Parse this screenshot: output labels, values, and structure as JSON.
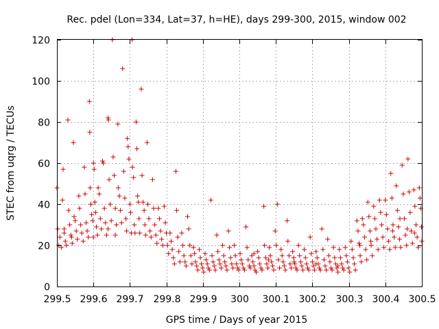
{
  "chart_data": {
    "type": "scatter",
    "title": "Rec. pdel (Lon=334, Lat=37, h=HE), days 299-300, 2015, window 002",
    "xlabel": "GPS time / Days of year 2015",
    "ylabel": "STEC from uqrg / TECUs",
    "xlim": [
      299.5,
      300.5
    ],
    "ylim": [
      0,
      120
    ],
    "xticks": [
      "299.5",
      "299.6",
      "299.7",
      "299.8",
      "299.9",
      "300",
      "300.1",
      "300.2",
      "300.3",
      "300.4",
      "300.5"
    ],
    "yticks": [
      "0",
      "20",
      "40",
      "60",
      "80",
      "100",
      "120"
    ],
    "grid": true,
    "marker": "+",
    "color": "#cc0000",
    "points": [
      [
        299.5,
        48
      ],
      [
        299.502,
        28
      ],
      [
        299.505,
        20
      ],
      [
        299.508,
        24
      ],
      [
        299.512,
        19
      ],
      [
        299.515,
        42
      ],
      [
        299.517,
        57
      ],
      [
        299.52,
        26
      ],
      [
        299.523,
        22
      ],
      [
        299.526,
        20
      ],
      [
        299.53,
        81
      ],
      [
        299.532,
        37
      ],
      [
        299.535,
        30
      ],
      [
        299.538,
        25
      ],
      [
        299.542,
        21
      ],
      [
        299.545,
        70
      ],
      [
        299.547,
        34
      ],
      [
        299.55,
        32
      ],
      [
        299.553,
        27
      ],
      [
        299.556,
        23
      ],
      [
        299.56,
        44
      ],
      [
        299.562,
        38
      ],
      [
        299.565,
        30
      ],
      [
        299.568,
        26
      ],
      [
        299.572,
        22
      ],
      [
        299.575,
        58
      ],
      [
        299.577,
        45
      ],
      [
        299.58,
        31
      ],
      [
        299.583,
        27
      ],
      [
        299.586,
        24
      ],
      [
        299.589,
        90
      ],
      [
        299.59,
        75
      ],
      [
        299.591,
        48
      ],
      [
        299.593,
        40
      ],
      [
        299.595,
        35
      ],
      [
        299.598,
        32
      ],
      [
        299.6,
        60
      ],
      [
        299.602,
        57
      ],
      [
        299.604,
        41
      ],
      [
        299.606,
        36
      ],
      [
        299.608,
        29
      ],
      [
        299.611,
        25
      ],
      [
        299.613,
        48
      ],
      [
        299.616,
        45
      ],
      [
        299.619,
        33
      ],
      [
        299.622,
        28
      ],
      [
        299.625,
        61
      ],
      [
        299.627,
        60
      ],
      [
        299.63,
        38
      ],
      [
        299.633,
        31
      ],
      [
        299.636,
        25
      ],
      [
        299.64,
        82
      ],
      [
        299.641,
        81
      ],
      [
        299.643,
        52
      ],
      [
        299.646,
        40
      ],
      [
        299.649,
        32
      ],
      [
        299.652,
        120
      ],
      [
        299.654,
        63
      ],
      [
        299.657,
        54
      ],
      [
        299.66,
        38
      ],
      [
        299.663,
        30
      ],
      [
        299.667,
        79
      ],
      [
        299.668,
        48
      ],
      [
        299.671,
        44
      ],
      [
        299.674,
        37
      ],
      [
        299.677,
        31
      ],
      [
        299.68,
        106
      ],
      [
        299.683,
        56
      ],
      [
        299.686,
        43
      ],
      [
        299.689,
        33
      ],
      [
        299.691,
        27
      ],
      [
        299.693,
        72
      ],
      [
        299.695,
        68
      ],
      [
        299.697,
        62
      ],
      [
        299.7,
        40
      ],
      [
        299.702,
        36
      ],
      [
        299.704,
        26
      ],
      [
        299.706,
        120
      ],
      [
        299.707,
        58
      ],
      [
        299.71,
        53
      ],
      [
        299.712,
        30
      ],
      [
        299.714,
        26
      ],
      [
        299.717,
        80
      ],
      [
        299.719,
        67
      ],
      [
        299.721,
        44
      ],
      [
        299.723,
        41
      ],
      [
        299.725,
        33
      ],
      [
        299.727,
        26
      ],
      [
        299.731,
        96
      ],
      [
        299.733,
        54
      ],
      [
        299.736,
        41
      ],
      [
        299.739,
        37
      ],
      [
        299.741,
        30
      ],
      [
        299.743,
        25
      ],
      [
        299.747,
        70
      ],
      [
        299.749,
        40
      ],
      [
        299.752,
        33
      ],
      [
        299.755,
        27
      ],
      [
        299.758,
        24
      ],
      [
        299.762,
        52
      ],
      [
        299.765,
        38
      ],
      [
        299.768,
        30
      ],
      [
        299.771,
        25
      ],
      [
        299.774,
        21
      ],
      [
        299.778,
        38
      ],
      [
        299.781,
        33
      ],
      [
        299.784,
        27
      ],
      [
        299.787,
        23
      ],
      [
        299.79,
        20
      ],
      [
        299.794,
        39
      ],
      [
        299.797,
        31
      ],
      [
        299.8,
        26
      ],
      [
        299.803,
        20
      ],
      [
        299.806,
        16
      ],
      [
        299.81,
        26
      ],
      [
        299.813,
        22
      ],
      [
        299.816,
        18
      ],
      [
        299.819,
        14
      ],
      [
        299.822,
        11
      ],
      [
        299.826,
        56
      ],
      [
        299.828,
        37
      ],
      [
        299.831,
        24
      ],
      [
        299.834,
        17
      ],
      [
        299.837,
        12
      ],
      [
        299.842,
        26
      ],
      [
        299.845,
        20
      ],
      [
        299.848,
        15
      ],
      [
        299.851,
        12
      ],
      [
        299.854,
        10
      ],
      [
        299.858,
        34
      ],
      [
        299.861,
        28
      ],
      [
        299.864,
        20
      ],
      [
        299.867,
        15
      ],
      [
        299.87,
        11
      ],
      [
        299.874,
        19
      ],
      [
        299.877,
        16
      ],
      [
        299.88,
        12
      ],
      [
        299.883,
        10
      ],
      [
        299.886,
        8
      ],
      [
        299.89,
        18
      ],
      [
        299.893,
        14
      ],
      [
        299.896,
        11
      ],
      [
        299.899,
        9
      ],
      [
        299.902,
        7
      ],
      [
        299.906,
        16
      ],
      [
        299.909,
        13
      ],
      [
        299.912,
        11
      ],
      [
        299.915,
        9
      ],
      [
        299.918,
        8
      ],
      [
        299.922,
        42
      ],
      [
        299.925,
        15
      ],
      [
        299.928,
        12
      ],
      [
        299.931,
        10
      ],
      [
        299.934,
        8
      ],
      [
        299.938,
        25
      ],
      [
        299.941,
        17
      ],
      [
        299.944,
        13
      ],
      [
        299.947,
        11
      ],
      [
        299.95,
        9
      ],
      [
        299.954,
        20
      ],
      [
        299.957,
        15
      ],
      [
        299.96,
        12
      ],
      [
        299.963,
        10
      ],
      [
        299.966,
        8
      ],
      [
        299.97,
        27
      ],
      [
        299.973,
        19
      ],
      [
        299.976,
        14
      ],
      [
        299.979,
        11
      ],
      [
        299.982,
        9
      ],
      [
        299.986,
        20
      ],
      [
        299.989,
        15
      ],
      [
        299.992,
        11
      ],
      [
        299.995,
        9
      ],
      [
        299.998,
        8
      ],
      [
        300.002,
        16
      ],
      [
        300.005,
        13
      ],
      [
        300.008,
        11
      ],
      [
        300.011,
        9
      ],
      [
        300.014,
        8
      ],
      [
        300.018,
        29
      ],
      [
        300.021,
        19
      ],
      [
        300.024,
        13
      ],
      [
        300.027,
        10
      ],
      [
        300.03,
        9
      ],
      [
        300.034,
        15
      ],
      [
        300.037,
        12
      ],
      [
        300.04,
        10
      ],
      [
        300.043,
        8
      ],
      [
        300.046,
        7
      ],
      [
        300.05,
        17
      ],
      [
        300.053,
        14
      ],
      [
        300.056,
        11
      ],
      [
        300.059,
        9
      ],
      [
        300.062,
        8
      ],
      [
        300.067,
        39
      ],
      [
        300.069,
        20
      ],
      [
        300.072,
        14
      ],
      [
        300.075,
        11
      ],
      [
        300.078,
        9
      ],
      [
        300.082,
        19
      ],
      [
        300.085,
        15
      ],
      [
        300.088,
        12
      ],
      [
        300.091,
        10
      ],
      [
        300.094,
        8
      ],
      [
        300.098,
        27
      ],
      [
        300.101,
        20
      ],
      [
        300.104,
        40
      ],
      [
        300.107,
        13
      ],
      [
        300.11,
        9
      ],
      [
        300.114,
        18
      ],
      [
        300.117,
        15
      ],
      [
        300.12,
        12
      ],
      [
        300.123,
        10
      ],
      [
        300.126,
        8
      ],
      [
        300.131,
        32
      ],
      [
        300.133,
        22
      ],
      [
        300.136,
        15
      ],
      [
        300.139,
        11
      ],
      [
        300.142,
        9
      ],
      [
        300.146,
        17
      ],
      [
        300.149,
        14
      ],
      [
        300.152,
        11
      ],
      [
        300.155,
        9
      ],
      [
        300.158,
        8
      ],
      [
        300.162,
        20
      ],
      [
        300.165,
        15
      ],
      [
        300.168,
        12
      ],
      [
        300.171,
        10
      ],
      [
        300.174,
        8
      ],
      [
        300.178,
        18
      ],
      [
        300.181,
        14
      ],
      [
        300.184,
        11
      ],
      [
        300.187,
        9
      ],
      [
        300.19,
        8
      ],
      [
        300.194,
        24
      ],
      [
        300.197,
        16
      ],
      [
        300.2,
        12
      ],
      [
        300.203,
        10
      ],
      [
        300.206,
        8
      ],
      [
        300.21,
        17
      ],
      [
        300.213,
        14
      ],
      [
        300.216,
        11
      ],
      [
        300.219,
        9
      ],
      [
        300.222,
        8
      ],
      [
        300.226,
        28
      ],
      [
        300.229,
        18
      ],
      [
        300.232,
        13
      ],
      [
        300.235,
        10
      ],
      [
        300.238,
        8
      ],
      [
        300.242,
        23
      ],
      [
        300.245,
        15
      ],
      [
        300.248,
        12
      ],
      [
        300.251,
        9
      ],
      [
        300.254,
        8
      ],
      [
        300.258,
        19
      ],
      [
        300.261,
        14
      ],
      [
        300.264,
        11
      ],
      [
        300.267,
        9
      ],
      [
        300.27,
        7
      ],
      [
        300.274,
        18
      ],
      [
        300.277,
        14
      ],
      [
        300.28,
        11
      ],
      [
        300.283,
        9
      ],
      [
        300.286,
        8
      ],
      [
        300.29,
        19
      ],
      [
        300.293,
        15
      ],
      [
        300.296,
        12
      ],
      [
        300.299,
        9
      ],
      [
        300.302,
        7
      ],
      [
        300.306,
        22
      ],
      [
        300.309,
        18
      ],
      [
        300.312,
        14
      ],
      [
        300.315,
        11
      ],
      [
        300.318,
        8
      ],
      [
        300.322,
        32
      ],
      [
        300.325,
        27
      ],
      [
        300.328,
        21
      ],
      [
        300.331,
        15
      ],
      [
        300.334,
        12
      ],
      [
        300.337,
        33
      ],
      [
        300.34,
        30
      ],
      [
        300.343,
        24
      ],
      [
        300.346,
        18
      ],
      [
        300.349,
        13
      ],
      [
        300.352,
        41
      ],
      [
        300.355,
        34
      ],
      [
        300.358,
        27
      ],
      [
        300.361,
        20
      ],
      [
        300.364,
        15
      ],
      [
        300.368,
        39
      ],
      [
        300.371,
        33
      ],
      [
        300.374,
        28
      ],
      [
        300.377,
        23
      ],
      [
        300.38,
        18
      ],
      [
        300.384,
        42
      ],
      [
        300.387,
        36
      ],
      [
        300.39,
        30
      ],
      [
        300.393,
        24
      ],
      [
        300.396,
        19
      ],
      [
        300.4,
        42
      ],
      [
        300.403,
        35
      ],
      [
        300.406,
        28
      ],
      [
        300.409,
        22
      ],
      [
        300.412,
        18
      ],
      [
        300.415,
        55
      ],
      [
        300.418,
        43
      ],
      [
        300.421,
        30
      ],
      [
        300.424,
        24
      ],
      [
        300.427,
        19
      ],
      [
        300.43,
        49
      ],
      [
        300.433,
        37
      ],
      [
        300.436,
        29
      ],
      [
        300.439,
        23
      ],
      [
        300.442,
        19
      ],
      [
        300.446,
        59
      ],
      [
        300.449,
        45
      ],
      [
        300.452,
        33
      ],
      [
        300.455,
        25
      ],
      [
        300.458,
        20
      ],
      [
        300.462,
        62
      ],
      [
        300.465,
        46
      ],
      [
        300.468,
        36
      ],
      [
        300.471,
        27
      ],
      [
        300.474,
        21
      ],
      [
        300.478,
        47
      ],
      [
        300.481,
        39
      ],
      [
        300.484,
        30
      ],
      [
        300.487,
        24
      ],
      [
        300.49,
        19
      ],
      [
        300.493,
        48
      ],
      [
        300.495,
        43
      ],
      [
        300.497,
        38
      ],
      [
        300.499,
        29
      ],
      [
        300.5,
        22
      ],
      [
        299.52,
        28
      ],
      [
        299.54,
        24
      ],
      [
        299.6,
        24
      ],
      [
        299.64,
        28
      ],
      [
        299.66,
        25
      ],
      [
        300.04,
        16
      ],
      [
        300.08,
        13
      ],
      [
        300.15,
        12
      ],
      [
        300.21,
        11
      ],
      [
        300.27,
        10
      ],
      [
        300.33,
        20
      ],
      [
        300.36,
        22
      ],
      [
        300.42,
        27
      ],
      [
        300.44,
        33
      ],
      [
        300.46,
        28
      ],
      [
        300.48,
        26
      ]
    ]
  }
}
